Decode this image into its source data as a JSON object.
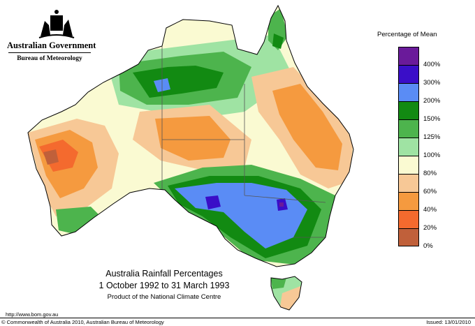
{
  "header": {
    "government": "Australian Government",
    "bureau": "Bureau of Meteorology"
  },
  "legend": {
    "title": "Percentage of Mean",
    "classes": [
      {
        "label": "",
        "color": "#6a1a9a"
      },
      {
        "label": "400%",
        "color": "#3a0ec8"
      },
      {
        "label": "300%",
        "color": "#5a8cf5"
      },
      {
        "label": "200%",
        "color": "#128a12"
      },
      {
        "label": "150%",
        "color": "#4db44d"
      },
      {
        "label": "125%",
        "color": "#9fe3a3"
      },
      {
        "label": "100%",
        "color": "#fafad2"
      },
      {
        "label": "80%",
        "color": "#f7c896"
      },
      {
        "label": "60%",
        "color": "#f59a3f"
      },
      {
        "label": "40%",
        "color": "#f46a2e"
      },
      {
        "label": "20%",
        "color": "#c0603a"
      },
      {
        "label": "0%",
        "color": ""
      }
    ]
  },
  "map": {
    "title": "Australia Rainfall Percentages",
    "dates": "1 October 1992 to 31 March 1993",
    "product": "Product of the National Climate Centre"
  },
  "footer": {
    "url": "http://www.bom.gov.au",
    "copyright": "© Commonwealth of Australia 2010, Australian Bureau of Meteorology",
    "issued": "Issued: 13/01/2010"
  }
}
